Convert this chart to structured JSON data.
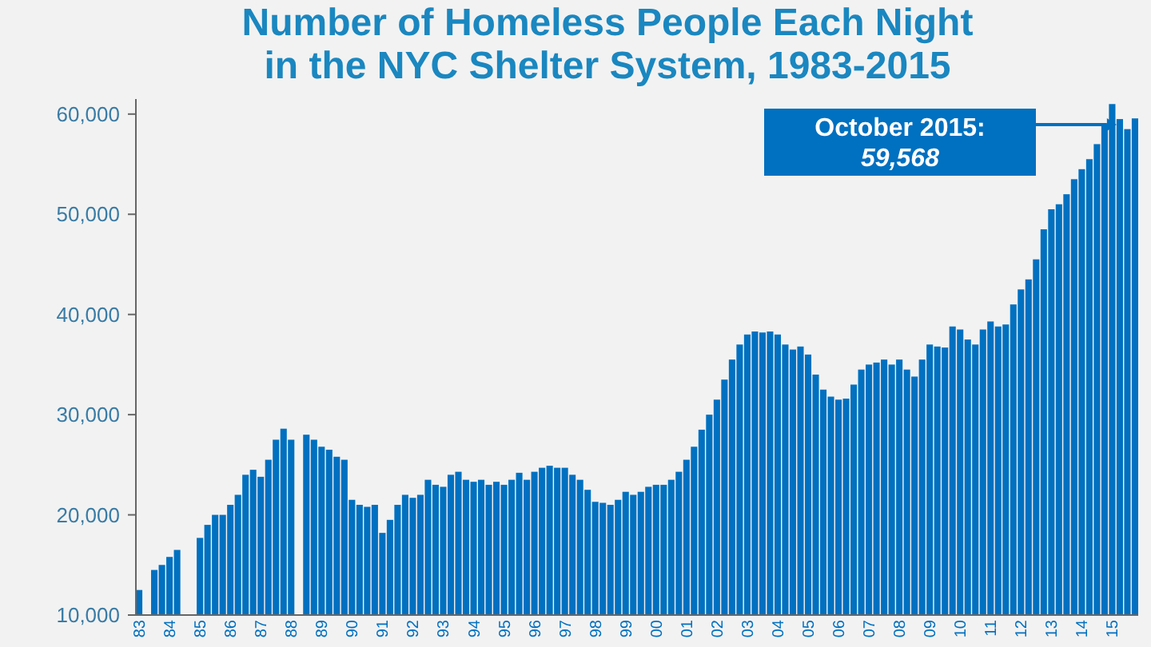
{
  "chart_data": {
    "type": "bar",
    "title": "Number of Homeless People Each Night in the NYC Shelter System, 1983-2015",
    "categories": [
      "83",
      null,
      null,
      null,
      "84",
      null,
      null,
      null,
      "85",
      null,
      null,
      null,
      "86",
      null,
      null,
      null,
      "87",
      null,
      null,
      null,
      "88",
      null,
      null,
      null,
      "89",
      null,
      null,
      null,
      "90",
      null,
      null,
      null,
      "91",
      null,
      null,
      null,
      "92",
      null,
      null,
      null,
      "93",
      null,
      null,
      null,
      "94",
      null,
      null,
      null,
      "95",
      null,
      null,
      null,
      "96",
      null,
      null,
      null,
      "97",
      null,
      null,
      null,
      "98",
      null,
      null,
      null,
      "99",
      null,
      null,
      null,
      "00",
      null,
      null,
      null,
      "01",
      null,
      null,
      null,
      "02",
      null,
      null,
      null,
      "03",
      null,
      null,
      null,
      "04",
      null,
      null,
      null,
      "05",
      null,
      null,
      null,
      "06",
      null,
      null,
      null,
      "07",
      null,
      null,
      null,
      "08",
      null,
      null,
      null,
      "09",
      null,
      null,
      null,
      "10",
      null,
      null,
      null,
      "11",
      null,
      null,
      null,
      "12",
      null,
      null,
      null,
      "13",
      null,
      null,
      null,
      "14",
      null,
      null,
      null,
      "15",
      null,
      null,
      null
    ],
    "values": [
      12500,
      null,
      14500,
      15000,
      15800,
      16500,
      null,
      null,
      17700,
      19000,
      20000,
      20000,
      21000,
      22000,
      24000,
      24500,
      23800,
      25500,
      27500,
      28600,
      27500,
      null,
      28000,
      27500,
      26800,
      26500,
      25800,
      25500,
      21500,
      21000,
      20800,
      21000,
      18200,
      19500,
      21000,
      22000,
      21700,
      22000,
      23500,
      23000,
      22800,
      24000,
      24300,
      23500,
      23300,
      23500,
      23000,
      23300,
      23000,
      23500,
      24200,
      23500,
      24300,
      24700,
      24900,
      24700,
      24700,
      24000,
      23500,
      22500,
      21300,
      21200,
      21000,
      21500,
      22300,
      22000,
      22300,
      22800,
      23000,
      23000,
      23500,
      24300,
      25500,
      26800,
      28500,
      30000,
      31500,
      33500,
      35500,
      37000,
      38000,
      38300,
      38200,
      38300,
      38000,
      37000,
      36500,
      36800,
      36000,
      34000,
      32500,
      31800,
      31500,
      31600,
      33000,
      34500,
      35000,
      35200,
      35500,
      35000,
      35500,
      34500,
      33800,
      35500,
      37000,
      36800,
      36700,
      38800,
      38500,
      37500,
      37000,
      38500,
      39300,
      38800,
      39000,
      41000,
      42500,
      43500,
      45500,
      48500,
      50500,
      51000,
      52000,
      53500,
      54500,
      55500,
      57000,
      59000,
      61000,
      59500,
      58500,
      59568
    ],
    "color": "#0070c0",
    "ylim": [
      10000,
      61500
    ],
    "yticks": [
      {
        "value": 10000,
        "label": "10,000"
      },
      {
        "value": 20000,
        "label": "20,000"
      },
      {
        "value": 30000,
        "label": "30,000"
      },
      {
        "value": 40000,
        "label": "40,000"
      },
      {
        "value": 50000,
        "label": "50,000"
      },
      {
        "value": 60000,
        "label": "60,000"
      }
    ],
    "annotations": [
      "October 2015:\n59,568"
    ]
  }
}
